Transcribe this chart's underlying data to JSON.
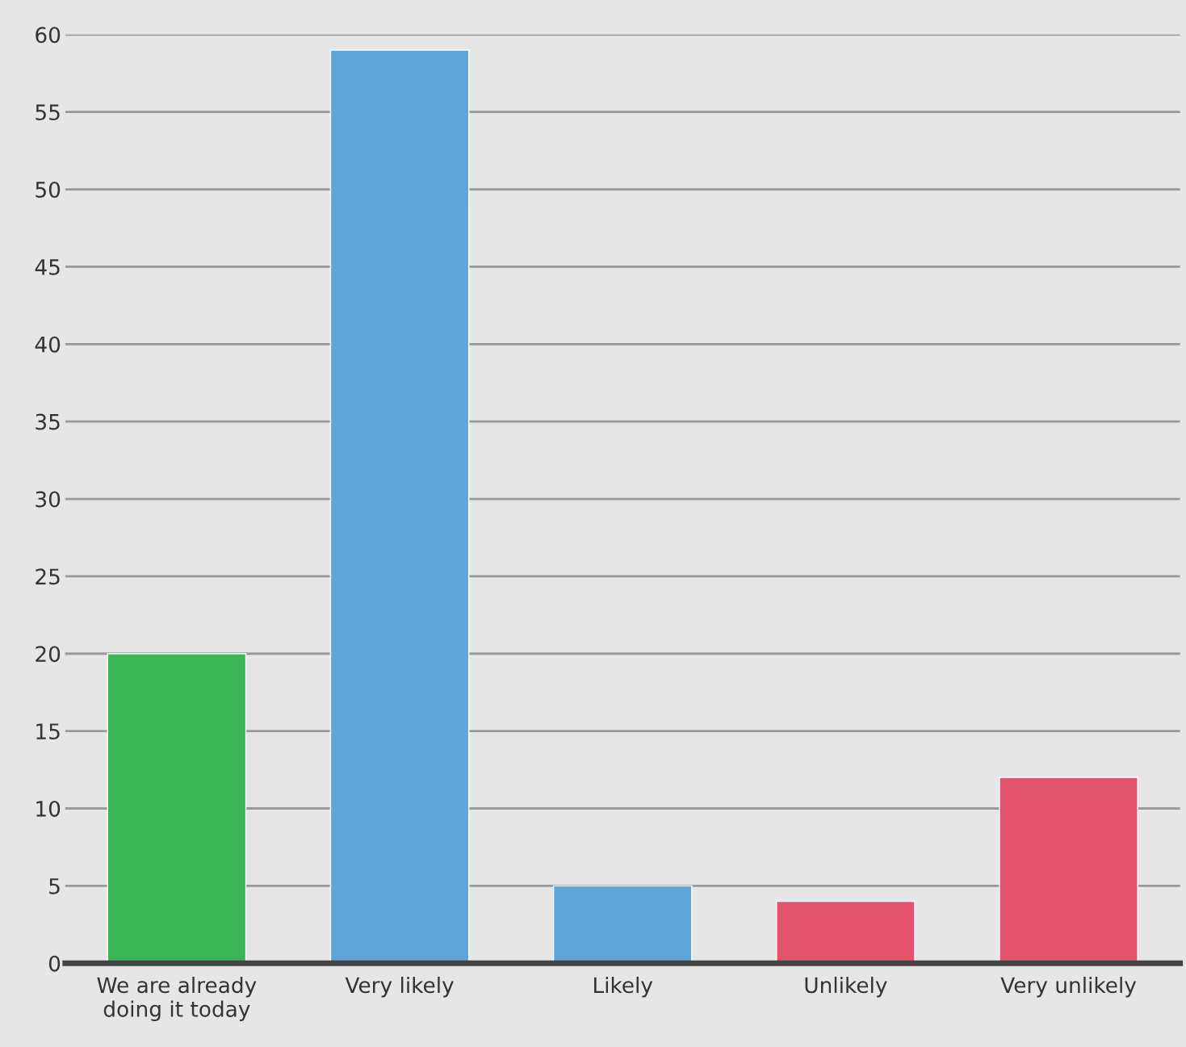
{
  "chart_data": {
    "type": "bar",
    "categories": [
      "We are already\ndoing it today",
      "Very likely",
      "Likely",
      "Unlikely",
      "Very unlikely"
    ],
    "values": [
      20,
      59,
      5,
      4,
      12
    ],
    "colors": [
      "#3cb556",
      "#60a5d8",
      "#60a5d8",
      "#e2546e",
      "#e2546e"
    ],
    "ylim": [
      0,
      60
    ],
    "yticks": [
      0,
      5,
      10,
      15,
      20,
      25,
      30,
      35,
      40,
      45,
      50,
      55,
      60
    ],
    "grid": "y"
  }
}
